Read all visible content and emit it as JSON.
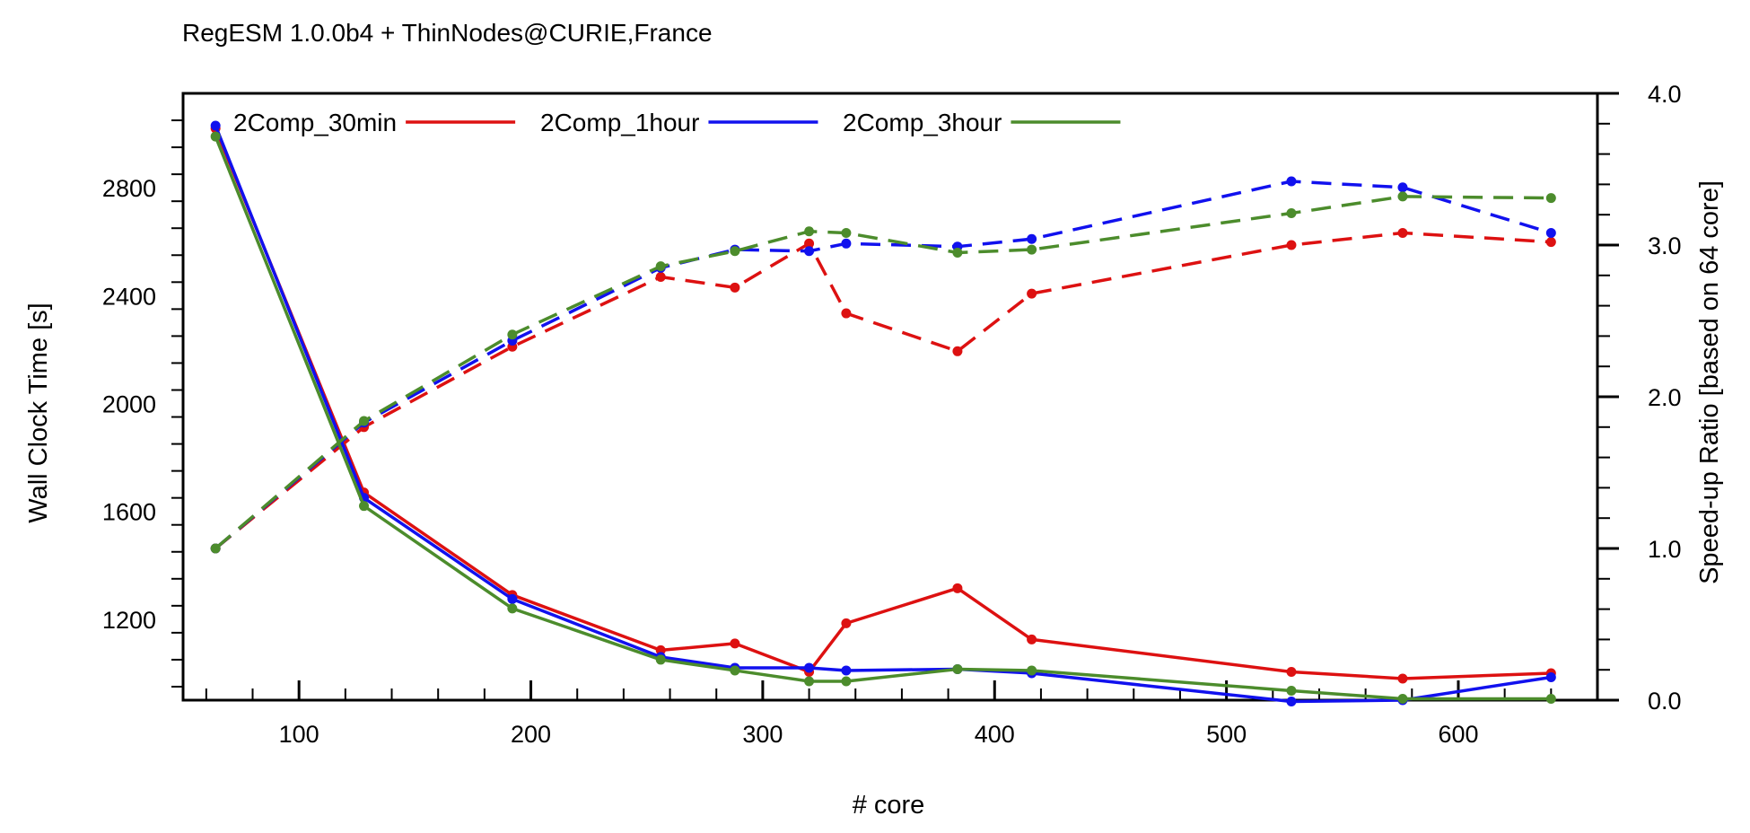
{
  "chart_data": {
    "type": "line",
    "title": "RegESM 1.0.0b4 + ThinNodes@CURIE,France",
    "xlabel": "# core",
    "ylabel_left": "Wall Clock Time [s]",
    "ylabel_right": "Speed-up Ratio [based on 64 core]",
    "x": [
      64,
      128,
      192,
      256,
      288,
      320,
      336,
      384,
      416,
      528,
      576,
      640
    ],
    "xlim": [
      50,
      660
    ],
    "ylim_left": [
      900,
      3150
    ],
    "ylim_right": [
      0.0,
      4.0
    ],
    "x_ticks": [
      100,
      200,
      300,
      400,
      500,
      600
    ],
    "y_ticks_left": [
      1200,
      1600,
      2000,
      2400,
      2800
    ],
    "y_ticks_right": [
      "0.0",
      "1.0",
      "2.0",
      "3.0",
      "4.0"
    ],
    "legend_position": "top-left",
    "grid": false,
    "series": [
      {
        "name": "2Comp_30min",
        "color": "#dd1111",
        "wall_time": [
          3020,
          1670,
          1290,
          1085,
          1110,
          1005,
          1185,
          1315,
          1125,
          1005,
          980,
          1000
        ],
        "speedup": [
          1.0,
          1.8,
          2.33,
          2.79,
          2.72,
          3.01,
          2.55,
          2.3,
          2.68,
          3.0,
          3.08,
          3.02
        ]
      },
      {
        "name": "2Comp_1hour",
        "color": "#1111ee",
        "wall_time": [
          3030,
          1650,
          1275,
          1060,
          1020,
          1020,
          1010,
          1015,
          1000,
          895,
          900,
          985
        ],
        "speedup": [
          1.0,
          1.83,
          2.37,
          2.85,
          2.97,
          2.96,
          3.01,
          2.99,
          3.04,
          3.42,
          3.38,
          3.08
        ]
      },
      {
        "name": "2Comp_3hour",
        "color": "#4c8c2c",
        "wall_time": [
          2990,
          1620,
          1240,
          1050,
          1010,
          970,
          970,
          1015,
          1010,
          935,
          905,
          905
        ],
        "speedup": [
          1.0,
          1.84,
          2.41,
          2.86,
          2.96,
          3.09,
          3.08,
          2.95,
          2.97,
          3.21,
          3.32,
          3.31
        ]
      }
    ]
  }
}
